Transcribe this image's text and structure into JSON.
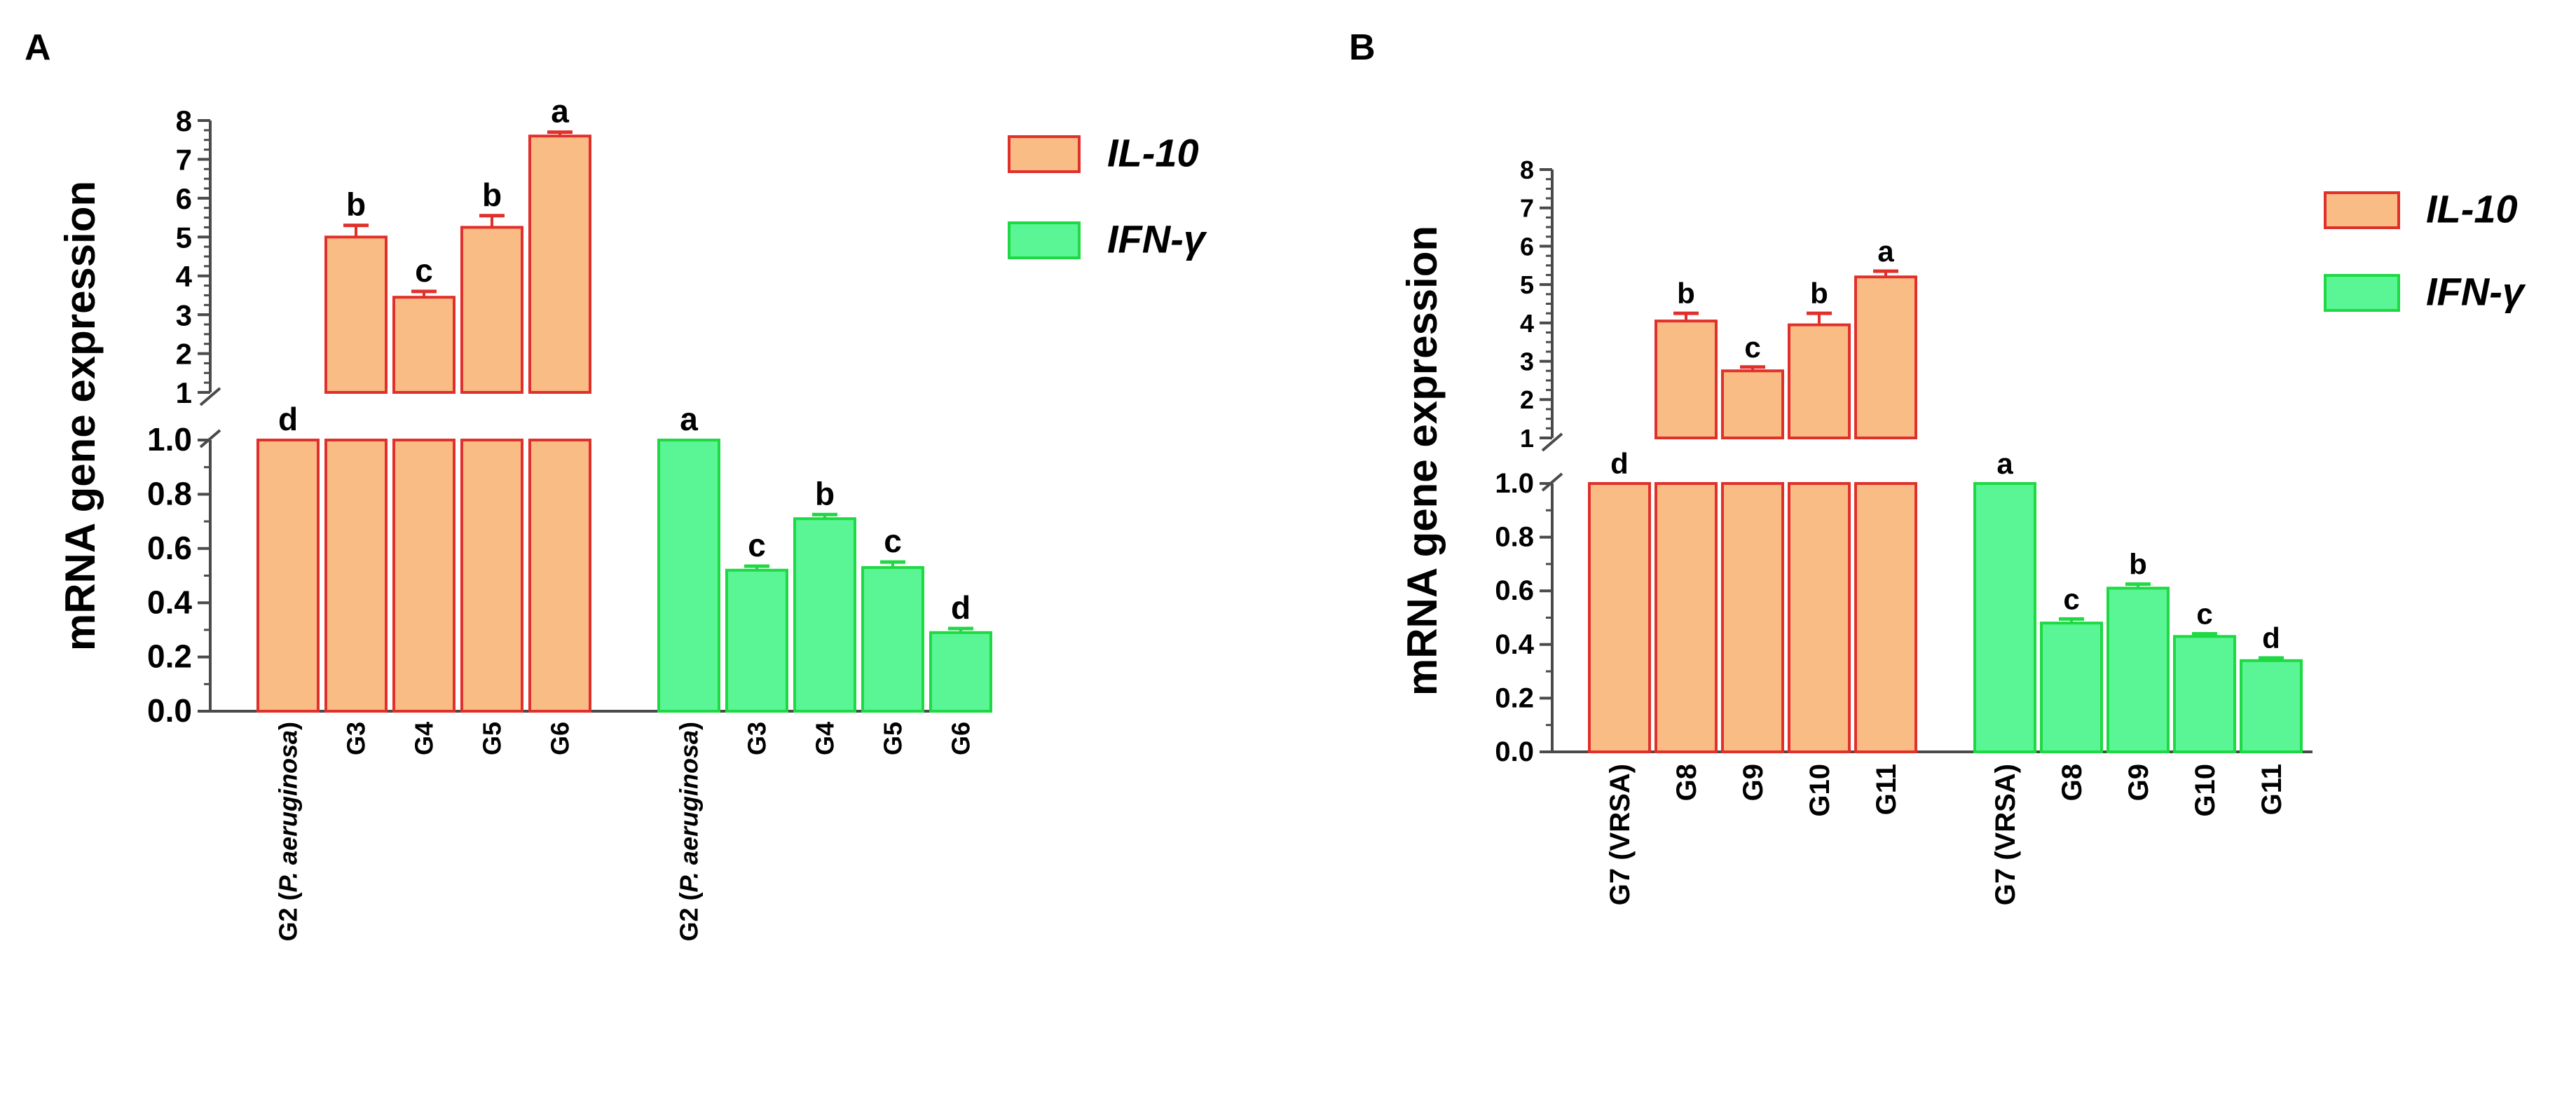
{
  "colors": {
    "il10_fill": "#F9BC85",
    "il10_stroke": "#E0302B",
    "ifng_fill": "#5AF594",
    "ifng_stroke": "#1ED944",
    "axis": "#4a4a4a",
    "text": "#000000"
  },
  "chart_data": [
    {
      "panel_label": "A",
      "type": "bar",
      "ylabel": "mRNA gene expression",
      "y_upper_ticks": [
        "1",
        "2",
        "3",
        "4",
        "5",
        "6",
        "7",
        "8"
      ],
      "y_lower_ticks": [
        "0.0",
        "0.2",
        "0.4",
        "0.6",
        "0.8",
        "1.0"
      ],
      "y_break": [
        1,
        1
      ],
      "ylim_lower": [
        0,
        1
      ],
      "ylim_upper": [
        1,
        8
      ],
      "legend": [
        "IL-10",
        "IFN-γ"
      ],
      "groups": [
        {
          "series": "IL-10",
          "categories": [
            "G2 (P. aeruginosa)",
            "G3",
            "G4",
            "G5",
            "G6"
          ],
          "values": [
            1.0,
            5.0,
            3.45,
            5.25,
            7.6
          ],
          "errors": [
            0,
            0.3,
            0.15,
            0.3,
            0.1
          ],
          "letters": [
            "d",
            "b",
            "c",
            "b",
            "a"
          ]
        },
        {
          "series": "IFN-γ",
          "categories": [
            "G2 (P. aeruginosa)",
            "G3",
            "G4",
            "G5",
            "G6"
          ],
          "values": [
            1.0,
            0.52,
            0.71,
            0.53,
            0.29
          ],
          "errors": [
            0,
            0.015,
            0.015,
            0.02,
            0.015
          ],
          "letters": [
            "a",
            "c",
            "b",
            "c",
            "d"
          ]
        }
      ]
    },
    {
      "panel_label": "B",
      "type": "bar",
      "ylabel": "mRNA gene expression",
      "y_upper_ticks": [
        "1",
        "2",
        "3",
        "4",
        "5",
        "6",
        "7",
        "8"
      ],
      "y_lower_ticks": [
        "0.0",
        "0.2",
        "0.4",
        "0.6",
        "0.8",
        "1.0"
      ],
      "y_break": [
        1,
        1
      ],
      "ylim_lower": [
        0,
        1
      ],
      "ylim_upper": [
        1,
        8
      ],
      "legend": [
        "IL-10",
        "IFN-γ"
      ],
      "groups": [
        {
          "series": "IL-10",
          "categories": [
            "G7 (VRSA)",
            "G8",
            "G9",
            "G10",
            "G11"
          ],
          "values": [
            1.0,
            4.05,
            2.75,
            3.95,
            5.2
          ],
          "errors": [
            0,
            0.2,
            0.1,
            0.3,
            0.15
          ],
          "letters": [
            "d",
            "b",
            "c",
            "b",
            "a"
          ]
        },
        {
          "series": "IFN-γ",
          "categories": [
            "G7 (VRSA)",
            "G8",
            "G9",
            "G10",
            "G11"
          ],
          "values": [
            1.0,
            0.48,
            0.61,
            0.43,
            0.34
          ],
          "errors": [
            0,
            0.015,
            0.015,
            0.01,
            0.01
          ],
          "letters": [
            "a",
            "c",
            "b",
            "c",
            "d"
          ]
        }
      ]
    }
  ]
}
